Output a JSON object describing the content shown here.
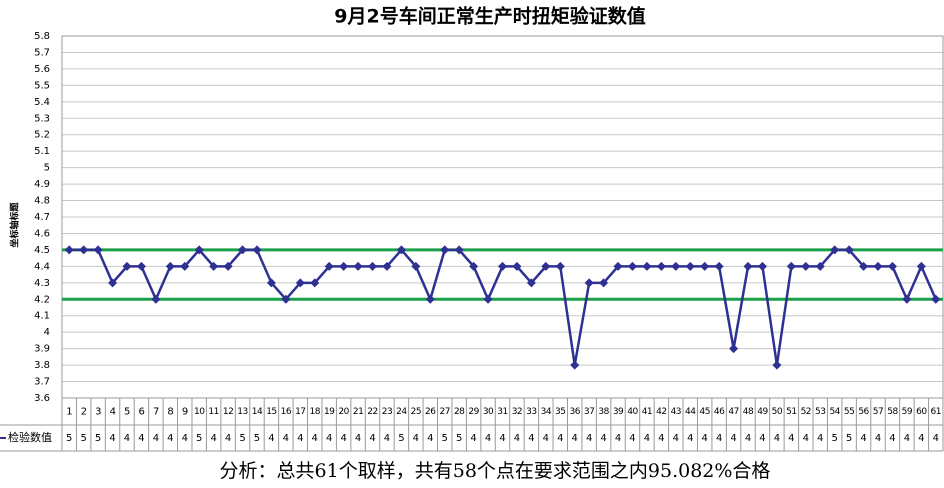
{
  "chart_data": {
    "type": "line",
    "title": "9月2号车间正常生产时扭矩验证数值",
    "y_label": "坐标轴标题",
    "categories": [
      "1",
      "2",
      "3",
      "4",
      "5",
      "6",
      "7",
      "8",
      "9",
      "10",
      "11",
      "12",
      "13",
      "14",
      "15",
      "16",
      "17",
      "18",
      "19",
      "20",
      "21",
      "22",
      "23",
      "24",
      "25",
      "26",
      "27",
      "28",
      "29",
      "30",
      "31",
      "32",
      "33",
      "34",
      "35",
      "36",
      "37",
      "38",
      "39",
      "40",
      "41",
      "42",
      "43",
      "44",
      "45",
      "46",
      "47",
      "48",
      "49",
      "50",
      "51",
      "52",
      "53",
      "54",
      "55",
      "56",
      "57",
      "58",
      "59",
      "60",
      "61"
    ],
    "series": [
      {
        "name": "检验数值",
        "color": "#2e3192",
        "values": [
          4.5,
          4.5,
          4.5,
          4.3,
          4.4,
          4.4,
          4.2,
          4.4,
          4.4,
          4.5,
          4.4,
          4.4,
          4.5,
          4.5,
          4.3,
          4.2,
          4.3,
          4.3,
          4.4,
          4.4,
          4.4,
          4.4,
          4.4,
          4.5,
          4.4,
          4.2,
          4.5,
          4.5,
          4.4,
          4.2,
          4.4,
          4.4,
          4.3,
          4.4,
          4.4,
          3.8,
          4.3,
          4.3,
          4.4,
          4.4,
          4.4,
          4.4,
          4.4,
          4.4,
          4.4,
          4.4,
          3.9,
          4.4,
          4.4,
          3.8,
          4.4,
          4.4,
          4.4,
          4.5,
          4.5,
          4.4,
          4.4,
          4.4,
          4.2,
          4.4,
          4.2
        ],
        "value_labels": [
          "5",
          "5",
          "5",
          "4",
          "4",
          "4",
          "4",
          "4",
          "4",
          "5",
          "4",
          "4",
          "5",
          "5",
          "4",
          "4",
          "4",
          "4",
          "4",
          "4",
          "4",
          "4",
          "4",
          "5",
          "4",
          "4",
          "5",
          "5",
          "4",
          "4",
          "4",
          "4",
          "4",
          "4",
          "4",
          "4",
          "4",
          "4",
          "4",
          "4",
          "4",
          "4",
          "4",
          "4",
          "4",
          "4",
          "4",
          "4",
          "4",
          "4",
          "4",
          "4",
          "4",
          "5",
          "5",
          "4",
          "4",
          "4",
          "4",
          "4",
          "4"
        ]
      }
    ],
    "limits": [
      4.5,
      4.2
    ],
    "limit_color": "#1aa04a",
    "ylim": [
      3.6,
      5.8
    ],
    "yticks": [
      3.6,
      3.7,
      3.8,
      3.9,
      4,
      4.1,
      4.2,
      4.3,
      4.4,
      4.5,
      4.6,
      4.7,
      4.8,
      4.9,
      5,
      5.1,
      5.2,
      5.3,
      5.4,
      5.5,
      5.6,
      5.7,
      5.8
    ],
    "grid": true,
    "note": "分析：总共61个取样，共有58个点在要求范围之内95.082%合格"
  }
}
